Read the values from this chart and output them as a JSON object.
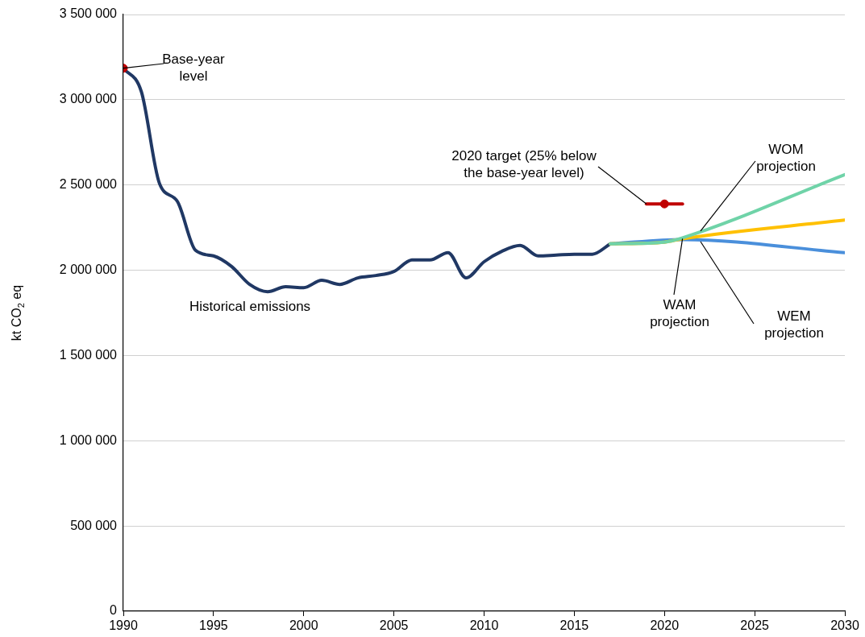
{
  "chart_data": {
    "type": "line",
    "ylabel": "kt CO$_{2}$ eq",
    "xlim": [
      1990,
      2030
    ],
    "xticks": [
      1990,
      1995,
      2000,
      2005,
      2010,
      2015,
      2020,
      2025,
      2030
    ],
    "ylim": [
      0,
      3500000
    ],
    "yticks": [
      {
        "value": 0,
        "label": "0"
      },
      {
        "value": 500000,
        "label": "500 000"
      },
      {
        "value": 1000000,
        "label": "1 000 000"
      },
      {
        "value": 1500000,
        "label": "1 500 000"
      },
      {
        "value": 2000000,
        "label": "2 000 000"
      },
      {
        "value": 2500000,
        "label": "2 500 000"
      },
      {
        "value": 3000000,
        "label": "3 000 000"
      },
      {
        "value": 3500000,
        "label": "3 500 000"
      }
    ],
    "grid": "y",
    "legend": false,
    "line_style": "solid",
    "series": [
      {
        "color": "#203864",
        "x": [
          1990,
          1991,
          1992,
          1993,
          1994,
          1995,
          1996,
          1997,
          1998,
          1999,
          2000,
          2001,
          2002,
          2003,
          2004,
          2005,
          2006,
          2007,
          2008,
          2009,
          2010,
          2011,
          2012,
          2013,
          2014,
          2015,
          2016,
          2017
        ],
        "values": [
          3185000,
          3047000,
          2510000,
          2403000,
          2117000,
          2084000,
          2022000,
          1917000,
          1874000,
          1903000,
          1898000,
          1941000,
          1917000,
          1955000,
          1969000,
          1993000,
          2060000,
          2060000,
          2103000,
          1955000,
          2050000,
          2112000,
          2146000,
          2084000,
          2089000,
          2094000,
          2094000,
          2155000
        ]
      },
      {
        "color": "#4a8fdb",
        "x": [
          2017,
          2021,
          2030
        ],
        "values": [
          2155000,
          2180000,
          2103000
        ]
      },
      {
        "color": "#ffc000",
        "x": [
          2017,
          2020,
          2021,
          2030
        ],
        "values": [
          2155000,
          2165000,
          2185000,
          2294000
        ]
      },
      {
        "color": "#6fd3a8",
        "x": [
          2017,
          2020,
          2021,
          2030
        ],
        "values": [
          2155000,
          2165000,
          2190000,
          2561000
        ]
      },
      {
        "color": "#c00000",
        "x": [
          2019,
          2021
        ],
        "values": [
          2389000,
          2389000
        ]
      },
      {
        "type": "scatter",
        "marker": "circle",
        "color": "#c00000",
        "x": [
          2020
        ],
        "values": [
          2389000
        ]
      },
      {
        "type": "scatter",
        "marker": "circle",
        "color": "#c00000",
        "x": [
          1990
        ],
        "values": [
          3185000
        ]
      }
    ],
    "annotations": [
      {
        "text": "Base-year level",
        "x": 1990,
        "y": 3185000
      },
      {
        "text": "2020 target (25% below the base-year level)",
        "x": 2019,
        "y": 2389000
      },
      {
        "text": "WOM projection",
        "x": 2022,
        "y": 2230000
      },
      {
        "text": "WAM projection",
        "x": 2021,
        "y": 2185000
      },
      {
        "text": "WEM projection",
        "x": 2022,
        "y": 2168000
      },
      "Historical emissions"
    ]
  }
}
